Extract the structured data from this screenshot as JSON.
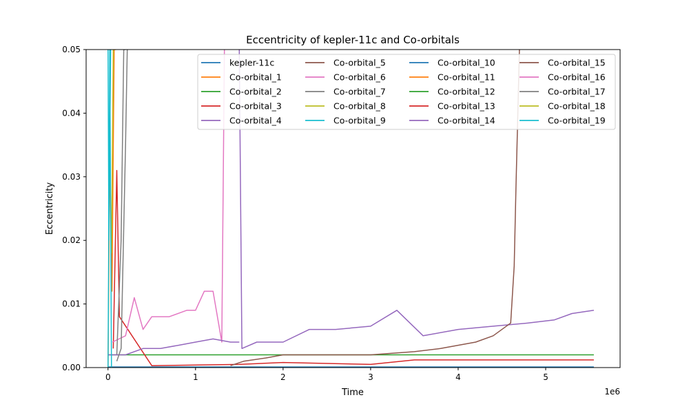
{
  "chart_data": {
    "type": "line",
    "title": "Eccentricity of kepler-11c and Co-orbitals",
    "xlabel": "Time",
    "ylabel": "Eccentricity",
    "x_offset_label": "1e6",
    "xlim": [
      -250000,
      5850000
    ],
    "ylim": [
      0,
      0.05
    ],
    "xticks": [
      0,
      1,
      2,
      3,
      4,
      5
    ],
    "yticks": [
      "0.00",
      "0.01",
      "0.02",
      "0.03",
      "0.04",
      "0.05"
    ],
    "grid": false,
    "legend_position": "top-right",
    "legend_columns": 4,
    "series": [
      {
        "name": "kepler-11c",
        "color": "#1f77b4",
        "points": [
          [
            0,
            0.0001
          ],
          [
            2000000,
            0.0001
          ],
          [
            4000000,
            0.0001
          ],
          [
            5550000,
            0.0001
          ]
        ]
      },
      {
        "name": "Co-orbital_1",
        "color": "#ff7f0e",
        "points": [
          [
            0,
            0.0
          ],
          [
            20000,
            0.034
          ],
          [
            45000,
            0.012
          ],
          [
            70000,
            0.05
          ],
          [
            90000,
            0.05
          ]
        ]
      },
      {
        "name": "Co-orbital_2",
        "color": "#2ca02c",
        "points": [
          [
            0,
            0.002
          ],
          [
            5550000,
            0.002
          ]
        ]
      },
      {
        "name": "Co-orbital_3",
        "color": "#d62728",
        "points": [
          [
            60000,
            0.003
          ],
          [
            100000,
            0.031
          ],
          [
            130000,
            0.008
          ],
          [
            500000,
            0.0003
          ],
          [
            1500000,
            0.0005
          ],
          [
            2000000,
            0.0008
          ],
          [
            3000000,
            0.0005
          ],
          [
            3500000,
            0.0012
          ],
          [
            4000000,
            0.0012
          ],
          [
            4500000,
            0.0012
          ],
          [
            5000000,
            0.0012
          ],
          [
            5550000,
            0.0012
          ]
        ]
      },
      {
        "name": "Co-orbital_4",
        "color": "#9467bd",
        "points": [
          [
            1500000,
            0.05
          ],
          [
            1530000,
            0.003
          ],
          [
            1700000,
            0.004
          ],
          [
            2000000,
            0.004
          ],
          [
            2300000,
            0.006
          ],
          [
            2600000,
            0.006
          ],
          [
            3000000,
            0.0065
          ],
          [
            3300000,
            0.009
          ],
          [
            3600000,
            0.005
          ],
          [
            4000000,
            0.006
          ],
          [
            4400000,
            0.0065
          ],
          [
            4800000,
            0.007
          ],
          [
            5100000,
            0.0075
          ],
          [
            5300000,
            0.0085
          ],
          [
            5550000,
            0.009
          ]
        ]
      },
      {
        "name": "Co-orbital_5",
        "color": "#8c564b",
        "points": [
          [
            1400000,
            0.0003
          ],
          [
            1550000,
            0.001
          ],
          [
            1800000,
            0.0015
          ],
          [
            2000000,
            0.002
          ],
          [
            2500000,
            0.002
          ],
          [
            3000000,
            0.002
          ],
          [
            3500000,
            0.0025
          ],
          [
            3800000,
            0.003
          ],
          [
            4200000,
            0.004
          ],
          [
            4400000,
            0.005
          ],
          [
            4600000,
            0.007
          ],
          [
            4640000,
            0.016
          ],
          [
            4660000,
            0.028
          ],
          [
            4700000,
            0.05
          ]
        ]
      },
      {
        "name": "Co-orbital_6",
        "color": "#e377c2",
        "points": [
          [
            50000,
            0.004
          ],
          [
            200000,
            0.005
          ],
          [
            300000,
            0.011
          ],
          [
            400000,
            0.006
          ],
          [
            500000,
            0.008
          ],
          [
            700000,
            0.008
          ],
          [
            900000,
            0.009
          ],
          [
            1000000,
            0.009
          ],
          [
            1100000,
            0.012
          ],
          [
            1200000,
            0.012
          ],
          [
            1300000,
            0.004
          ],
          [
            1330000,
            0.05
          ]
        ]
      },
      {
        "name": "Co-orbital_7",
        "color": "#7f7f7f",
        "points": [
          [
            100000,
            0.002
          ],
          [
            150000,
            0.02
          ],
          [
            180000,
            0.05
          ],
          [
            200000,
            0.05
          ]
        ]
      },
      {
        "name": "Co-orbital_8",
        "color": "#bcbd22",
        "points": [
          [
            40000,
            0.018
          ],
          [
            60000,
            0.05
          ],
          [
            80000,
            0.05
          ]
        ]
      },
      {
        "name": "Co-orbital_9",
        "color": "#17becf",
        "points": [
          [
            0,
            0.05
          ],
          [
            10000,
            0.02
          ],
          [
            30000,
            0.05
          ]
        ]
      },
      {
        "name": "Co-orbital_10",
        "color": "#1f77b4",
        "points": []
      },
      {
        "name": "Co-orbital_11",
        "color": "#ff7f0e",
        "points": []
      },
      {
        "name": "Co-orbital_12",
        "color": "#2ca02c",
        "points": []
      },
      {
        "name": "Co-orbital_13",
        "color": "#d62728",
        "points": []
      },
      {
        "name": "Co-orbital_14",
        "color": "#9467bd",
        "points": [
          [
            0,
            0.002
          ],
          [
            200000,
            0.002
          ],
          [
            400000,
            0.003
          ],
          [
            600000,
            0.003
          ],
          [
            800000,
            0.0035
          ],
          [
            1000000,
            0.004
          ],
          [
            1200000,
            0.0045
          ],
          [
            1400000,
            0.004
          ],
          [
            1500000,
            0.004
          ]
        ]
      },
      {
        "name": "Co-orbital_15",
        "color": "#8c564b",
        "points": []
      },
      {
        "name": "Co-orbital_16",
        "color": "#e377c2",
        "points": []
      },
      {
        "name": "Co-orbital_17",
        "color": "#7f7f7f",
        "points": [
          [
            100000,
            0.001
          ],
          [
            150000,
            0.003
          ],
          [
            200000,
            0.035
          ],
          [
            220000,
            0.05
          ]
        ]
      },
      {
        "name": "Co-orbital_18",
        "color": "#bcbd22",
        "points": []
      },
      {
        "name": "Co-orbital_19",
        "color": "#17becf",
        "points": [
          [
            0,
            0.0
          ],
          [
            20000,
            0.05
          ],
          [
            40000,
            0.0
          ]
        ]
      }
    ]
  }
}
